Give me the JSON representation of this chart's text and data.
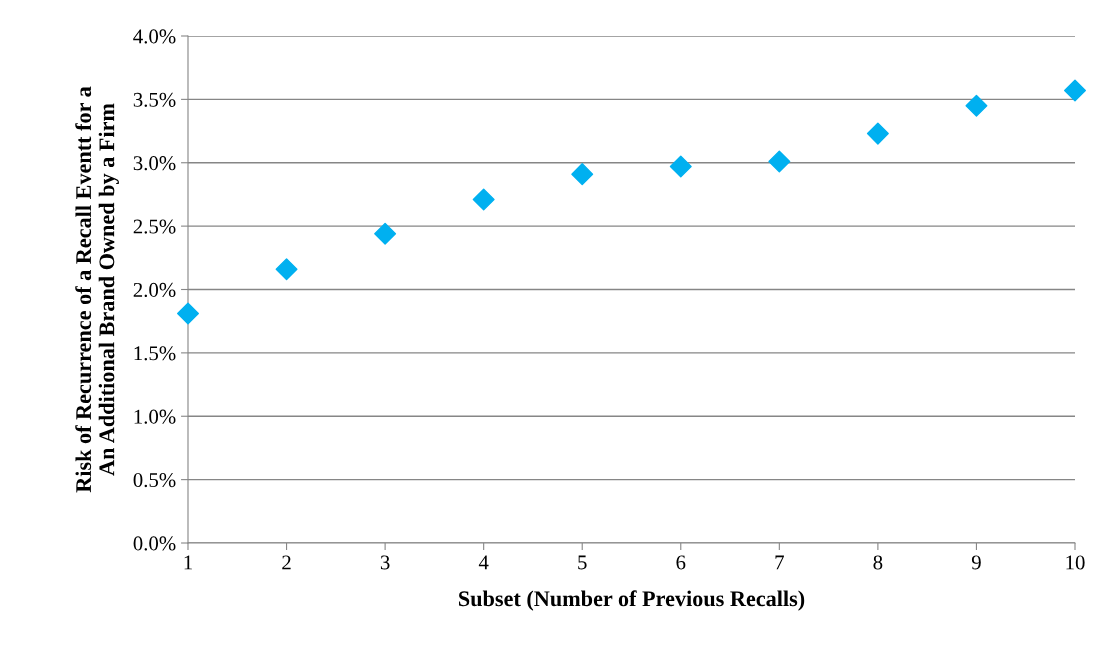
{
  "chart_data": {
    "type": "scatter",
    "xlabel": "Subset (Number of Previous Recalls)",
    "ylabel": "Risk of Recurrence of a Recall Eventt for a\nAn Additional Brand Owned by a Firm",
    "x": [
      1,
      2,
      3,
      4,
      5,
      6,
      7,
      8,
      9,
      10
    ],
    "series": [
      {
        "color": "#00b0f0",
        "values": [
          1.81,
          2.16,
          2.44,
          2.71,
          2.91,
          2.97,
          3.01,
          3.23,
          3.45,
          3.57
        ]
      }
    ],
    "marker": "diamond",
    "xlim": [
      1,
      10
    ],
    "xticks": [
      1,
      2,
      3,
      4,
      5,
      6,
      7,
      8,
      9,
      10
    ],
    "ylim": [
      0,
      4
    ],
    "yticks": [
      {
        "value": 0,
        "label": "0.0%"
      },
      {
        "value": 0.5,
        "label": "0.5%"
      },
      {
        "value": 1,
        "label": "1.0%"
      },
      {
        "value": 1.5,
        "label": "1.5%"
      },
      {
        "value": 2,
        "label": "2.0%"
      },
      {
        "value": 2.5,
        "label": "2.5%"
      },
      {
        "value": 3,
        "label": "3.0%"
      },
      {
        "value": 3.5,
        "label": "3.5%"
      },
      {
        "value": 4,
        "label": "4.0%"
      }
    ],
    "grid": "y"
  }
}
